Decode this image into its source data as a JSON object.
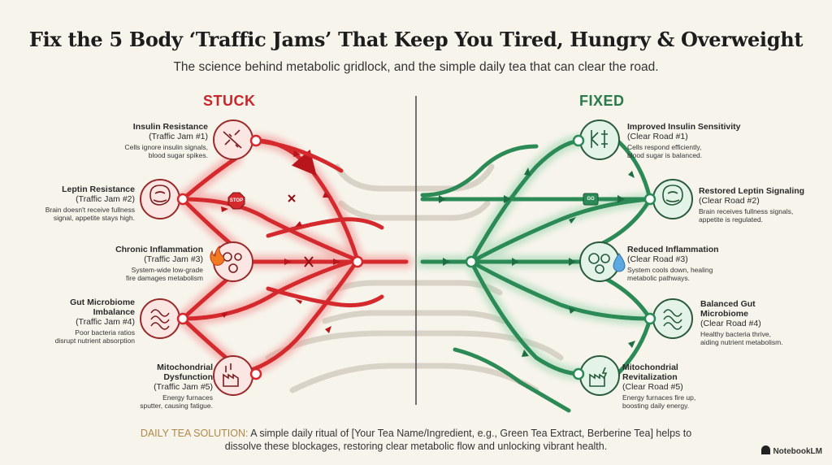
{
  "title": "Fix the 5 Body ‘Traffic Jams’ That Keep You Tired, Hungry & Overweight",
  "subtitle": "The science behind metabolic gridlock, and the simple daily tea that can clear the road.",
  "stuck_heading": "STUCK",
  "fixed_heading": "FIXED",
  "stuck": [
    {
      "name": "Insulin Resistance",
      "sub": "(Traffic Jam #1)",
      "desc1": "Cells ignore insulin signals,",
      "desc2": "blood sugar spikes."
    },
    {
      "name": "Leptin Resistance",
      "sub": "(Traffic Jam #2)",
      "desc1": "Brain doesn't receive fullness",
      "desc2": "signal, appetite stays high."
    },
    {
      "name": "Chronic Inflammation",
      "sub": "(Traffic Jam #3)",
      "desc1": "System-wide low-grade",
      "desc2": "fire damages metabolism"
    },
    {
      "name": "Gut Microbiome",
      "name2": "Imbalance",
      "sub": "(Traffic Jam #4)",
      "desc1": "Poor bacteria ratios",
      "desc2": "disrupt nutrient absorption"
    },
    {
      "name": "Mitochondrial",
      "name2": "Dysfunction",
      "sub": "(Traffic Jam #5)",
      "desc1": "Energy furnaces",
      "desc2": "sputter, causing fatigue."
    }
  ],
  "fixed": [
    {
      "name": "Improved Insulin Sensitivity",
      "sub": "(Clear Road #1)",
      "desc1": "Cells respond efficiently,",
      "desc2": "blood sugar is balanced."
    },
    {
      "name": "Restored Leptin Signaling",
      "sub": "(Clear Road #2)",
      "desc1": "Brain receives fullness signals,",
      "desc2": "appetite is regulated."
    },
    {
      "name": "Reduced Inflammation",
      "sub": "(Clear Road #3)",
      "desc1": "System cools down, healing",
      "desc2": "metabolic pathways."
    },
    {
      "name": "Balanced Gut",
      "name2": "Microbiome",
      "sub": "(Clear Road #4)",
      "desc1": "Healthy bacteria thrive,",
      "desc2": "aiding nutrient metabolism."
    },
    {
      "name": "Mitochondrial",
      "name2": "Revitalization",
      "sub": "(Clear Road #5)",
      "desc1": "Energy furnaces fire up,",
      "desc2": "boosting daily energy."
    }
  ],
  "signs": {
    "stop": "STOP",
    "go": "GO"
  },
  "footer": {
    "key": "DAILY TEA SOLUTION:",
    "line1": " A simple daily ritual of [Your Tea Name/Ingredient, e.g., Green Tea Extract, Berberine Tea] helps to",
    "line2": "dissolve these blockages, restoring clear metabolic flow and unlocking vibrant health."
  },
  "brand": "NotebookLM",
  "colors": {
    "stuck": "#d42a2e",
    "fixed": "#2b8a55",
    "neutral": "#cfcabd"
  }
}
